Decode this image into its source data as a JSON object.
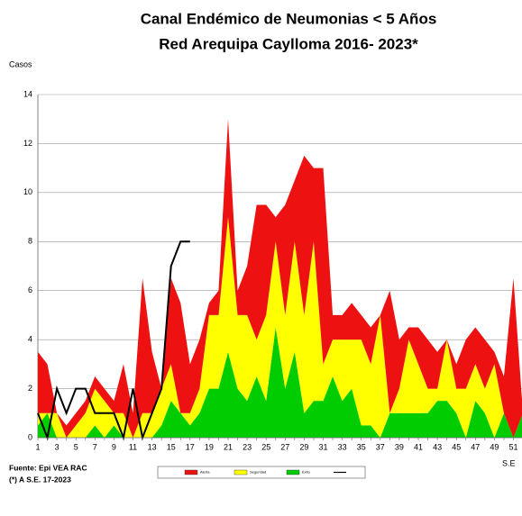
{
  "chart_data": {
    "type": "stacked_area",
    "title": "Canal Endémico de Neumonias < 5 Años",
    "subtitle": "Red Arequipa Caylloma 2016- 2023*",
    "y_label": "Casos",
    "x_label": "S.E",
    "source": "Fuente: Epi VEA RAC",
    "note": "(*) A S.E. 17-2023",
    "categories": [
      1,
      null,
      3,
      null,
      5,
      null,
      7,
      null,
      9,
      null,
      11,
      null,
      13,
      null,
      15,
      null,
      17,
      null,
      19,
      null,
      21,
      null,
      23,
      null,
      25,
      null,
      27,
      null,
      29,
      null,
      31,
      null,
      33,
      null,
      35,
      null,
      37,
      null,
      39,
      null,
      41,
      null,
      43,
      null,
      45,
      null,
      47,
      null,
      49,
      null,
      51,
      null
    ],
    "series": [
      {
        "name": "Éxito",
        "color": "#00cc00",
        "values": [
          0.5,
          1,
          0,
          0,
          0,
          0,
          0.5,
          0,
          0.5,
          0,
          0,
          0,
          0,
          0.5,
          1.5,
          1,
          0.5,
          1,
          2,
          2,
          3.5,
          2,
          1.5,
          2.5,
          1.5,
          4.5,
          2,
          3.5,
          1,
          1.5,
          1.5,
          2.5,
          1.5,
          2,
          0.5,
          0.5,
          0,
          1,
          1,
          1,
          1,
          1,
          1.5,
          1.5,
          1,
          0,
          1.5,
          1,
          0,
          1,
          0,
          1
        ]
      },
      {
        "name": "Seguridad",
        "color": "#ffff00",
        "values": [
          0.5,
          0,
          1,
          0,
          0.5,
          1,
          1.5,
          1.5,
          0.5,
          1,
          0,
          1,
          1,
          1.5,
          1.5,
          0,
          0.5,
          1,
          3,
          3,
          5.5,
          3,
          3.5,
          1.5,
          3.5,
          3.5,
          3,
          4.5,
          4,
          6.5,
          1.5,
          1.5,
          2.5,
          2,
          3.5,
          2.5,
          5,
          0,
          1,
          3,
          2,
          1,
          0.5,
          2.5,
          1,
          2,
          1.5,
          1,
          3,
          0,
          0,
          0
        ]
      },
      {
        "name": "Alerta",
        "color": "#ee1111",
        "values": [
          2.5,
          2,
          0,
          0.5,
          0.5,
          0.5,
          0.5,
          0.5,
          0.5,
          2,
          1,
          5.5,
          2.5,
          0,
          3.5,
          4.5,
          2,
          2,
          0.5,
          1,
          4,
          1,
          2,
          5.5,
          4.5,
          1,
          4.5,
          2.5,
          6.5,
          3,
          8,
          1,
          1,
          1.5,
          1,
          1.5,
          0,
          5,
          2,
          0.5,
          1.5,
          2,
          1.5,
          0,
          1,
          2,
          1.5,
          2,
          0.5,
          1.5,
          6.5,
          0
        ]
      },
      {
        "type": "line",
        "color": "#000000",
        "values": [
          1,
          0,
          2,
          1,
          2,
          2,
          1,
          1,
          1,
          0,
          2,
          0,
          1,
          2,
          7,
          8,
          8,
          null,
          null,
          null,
          null,
          null,
          null,
          null,
          null,
          null,
          null,
          null,
          null,
          null,
          null,
          null,
          null,
          null,
          null,
          null,
          null,
          null,
          null,
          null,
          null,
          null,
          null,
          null,
          null,
          null,
          null,
          null,
          null,
          null,
          null,
          null
        ]
      }
    ],
    "ylim": [
      0,
      14
    ],
    "yticks": [
      0,
      2,
      4,
      6,
      8,
      10,
      12,
      14
    ],
    "grid": true
  }
}
